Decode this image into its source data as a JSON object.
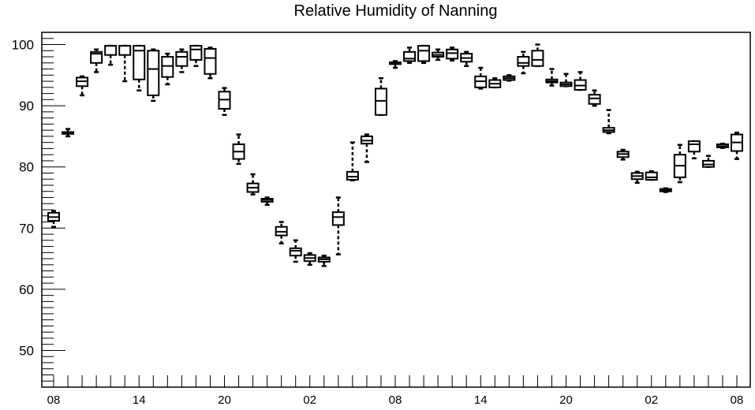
{
  "chart_data": {
    "type": "box",
    "title": "Relative Humidity of Nanning",
    "xlabel": "",
    "ylabel": "",
    "ylim": [
      44,
      102
    ],
    "y_ticks": [
      50,
      60,
      70,
      80,
      90,
      100
    ],
    "x_tick_labels": [
      "08",
      "14",
      "20",
      "02",
      "08",
      "14",
      "20",
      "02",
      "08"
    ],
    "x_tick_hours": [
      0,
      6,
      12,
      18,
      24,
      30,
      36,
      42,
      48
    ],
    "grid": false,
    "legend": "none",
    "color": "#000000",
    "boxes": [
      {
        "hour": 0,
        "whislo": 70.2,
        "q1": 71.2,
        "med": 71.8,
        "q3": 72.5,
        "whishi": 72.8
      },
      {
        "hour": 1,
        "whislo": 85.0,
        "q1": 85.4,
        "med": 85.5,
        "q3": 85.7,
        "whishi": 86.2
      },
      {
        "hour": 2,
        "whislo": 91.7,
        "q1": 93.2,
        "med": 94.0,
        "q3": 94.6,
        "whishi": 94.8
      },
      {
        "hour": 3,
        "whislo": 95.5,
        "q1": 97.0,
        "med": 98.5,
        "q3": 98.8,
        "whishi": 99.2
      },
      {
        "hour": 4,
        "whislo": 96.7,
        "q1": 98.3,
        "med": 99.8,
        "q3": 99.8,
        "whishi": 99.8
      },
      {
        "hour": 5,
        "whislo": 94.0,
        "q1": 98.3,
        "med": 99.8,
        "q3": 99.8,
        "whishi": 99.8
      },
      {
        "hour": 6,
        "whislo": 92.5,
        "q1": 94.3,
        "med": 99.0,
        "q3": 99.8,
        "whishi": 99.8
      },
      {
        "hour": 7,
        "whislo": 90.8,
        "q1": 91.7,
        "med": 96.0,
        "q3": 99.0,
        "whishi": 99.2
      },
      {
        "hour": 8,
        "whislo": 93.5,
        "q1": 94.7,
        "med": 96.5,
        "q3": 98.0,
        "whishi": 98.5
      },
      {
        "hour": 9,
        "whislo": 95.5,
        "q1": 96.5,
        "med": 98.0,
        "q3": 98.8,
        "whishi": 99.2
      },
      {
        "hour": 10,
        "whislo": 96.5,
        "q1": 97.5,
        "med": 99.2,
        "q3": 99.8,
        "whishi": 99.8
      },
      {
        "hour": 11,
        "whislo": 94.5,
        "q1": 95.2,
        "med": 97.8,
        "q3": 99.3,
        "whishi": 99.5
      },
      {
        "hour": 12,
        "whislo": 88.5,
        "q1": 89.5,
        "med": 91.0,
        "q3": 92.3,
        "whishi": 92.9
      },
      {
        "hour": 13,
        "whislo": 80.5,
        "q1": 81.3,
        "med": 82.5,
        "q3": 83.7,
        "whishi": 85.3
      },
      {
        "hour": 14,
        "whislo": 75.5,
        "q1": 75.9,
        "med": 76.6,
        "q3": 77.3,
        "whishi": 78.8
      },
      {
        "hour": 15,
        "whislo": 73.8,
        "q1": 74.3,
        "med": 74.6,
        "q3": 74.8,
        "whishi": 75.0
      },
      {
        "hour": 16,
        "whislo": 67.5,
        "q1": 68.8,
        "med": 69.4,
        "q3": 70.2,
        "whishi": 71.0
      },
      {
        "hour": 17,
        "whislo": 64.5,
        "q1": 65.5,
        "med": 66.3,
        "q3": 66.7,
        "whishi": 68.0
      },
      {
        "hour": 18,
        "whislo": 64.0,
        "q1": 64.6,
        "med": 65.1,
        "q3": 65.6,
        "whishi": 65.9
      },
      {
        "hour": 19,
        "whislo": 63.8,
        "q1": 64.5,
        "med": 64.9,
        "q3": 65.2,
        "whishi": 65.5
      },
      {
        "hour": 20,
        "whislo": 65.7,
        "q1": 70.5,
        "med": 71.8,
        "q3": 72.6,
        "whishi": 75.0
      },
      {
        "hour": 21,
        "whislo": 77.8,
        "q1": 77.9,
        "med": 78.4,
        "q3": 79.2,
        "whishi": 84.0
      },
      {
        "hour": 22,
        "whislo": 80.8,
        "q1": 83.8,
        "med": 84.3,
        "q3": 85.0,
        "whishi": 85.3
      },
      {
        "hour": 23,
        "whislo": 88.5,
        "q1": 88.5,
        "med": 90.8,
        "q3": 92.8,
        "whishi": 94.5
      },
      {
        "hour": 24,
        "whislo": 96.2,
        "q1": 96.8,
        "med": 97.0,
        "q3": 97.1,
        "whishi": 97.3
      },
      {
        "hour": 25,
        "whislo": 97.0,
        "q1": 97.3,
        "med": 97.7,
        "q3": 98.8,
        "whishi": 99.5
      },
      {
        "hour": 26,
        "whislo": 97.0,
        "q1": 97.3,
        "med": 99.0,
        "q3": 99.8,
        "whishi": 99.8
      },
      {
        "hour": 27,
        "whislo": 97.5,
        "q1": 98.0,
        "med": 98.3,
        "q3": 98.7,
        "whishi": 99.2
      },
      {
        "hour": 28,
        "whislo": 97.4,
        "q1": 97.7,
        "med": 98.6,
        "q3": 99.2,
        "whishi": 99.5
      },
      {
        "hour": 29,
        "whislo": 96.5,
        "q1": 97.2,
        "med": 97.8,
        "q3": 98.5,
        "whishi": 98.8
      },
      {
        "hour": 30,
        "whislo": 92.8,
        "q1": 93.0,
        "med": 94.0,
        "q3": 94.8,
        "whishi": 96.2
      },
      {
        "hour": 31,
        "whislo": 93.0,
        "q1": 93.0,
        "med": 93.6,
        "q3": 94.2,
        "whishi": 94.5
      },
      {
        "hour": 32,
        "whislo": 94.1,
        "q1": 94.2,
        "med": 94.5,
        "q3": 94.8,
        "whishi": 95.0
      },
      {
        "hour": 33,
        "whislo": 95.3,
        "q1": 96.5,
        "med": 97.0,
        "q3": 98.0,
        "whishi": 98.8
      },
      {
        "hour": 34,
        "whislo": 96.5,
        "q1": 96.5,
        "med": 97.5,
        "q3": 99.0,
        "whishi": 100.0
      },
      {
        "hour": 35,
        "whislo": 93.3,
        "q1": 93.8,
        "med": 94.0,
        "q3": 94.3,
        "whishi": 96.0
      },
      {
        "hour": 36,
        "whislo": 93.2,
        "q1": 93.2,
        "med": 93.5,
        "q3": 93.8,
        "whishi": 95.2
      },
      {
        "hour": 37,
        "whislo": 92.6,
        "q1": 92.6,
        "med": 93.3,
        "q3": 94.2,
        "whishi": 95.5
      },
      {
        "hour": 38,
        "whislo": 90.0,
        "q1": 90.3,
        "med": 91.2,
        "q3": 91.8,
        "whishi": 92.5
      },
      {
        "hour": 39,
        "whislo": 85.5,
        "q1": 85.7,
        "med": 86.0,
        "q3": 86.4,
        "whishi": 89.3
      },
      {
        "hour": 40,
        "whislo": 81.2,
        "q1": 81.6,
        "med": 82.1,
        "q3": 82.5,
        "whishi": 82.8
      },
      {
        "hour": 41,
        "whislo": 77.4,
        "q1": 78.0,
        "med": 78.5,
        "q3": 79.0,
        "whishi": 79.2
      },
      {
        "hour": 42,
        "whislo": 77.9,
        "q1": 77.9,
        "med": 78.3,
        "q3": 79.1,
        "whishi": 79.3
      },
      {
        "hour": 43,
        "whislo": 75.9,
        "q1": 76.0,
        "med": 76.2,
        "q3": 76.4,
        "whishi": 76.5
      },
      {
        "hour": 44,
        "whislo": 77.5,
        "q1": 78.3,
        "med": 80.2,
        "q3": 82.0,
        "whishi": 83.6
      },
      {
        "hour": 45,
        "whislo": 81.4,
        "q1": 82.5,
        "med": 83.7,
        "q3": 84.2,
        "whishi": 84.2
      },
      {
        "hour": 46,
        "whislo": 80.0,
        "q1": 80.0,
        "med": 80.4,
        "q3": 81.0,
        "whishi": 81.8
      },
      {
        "hour": 47,
        "whislo": 83.1,
        "q1": 83.2,
        "med": 83.4,
        "q3": 83.7,
        "whishi": 83.8
      },
      {
        "hour": 48,
        "whislo": 81.3,
        "q1": 82.6,
        "med": 84.0,
        "q3": 85.3,
        "whishi": 85.6
      }
    ]
  }
}
